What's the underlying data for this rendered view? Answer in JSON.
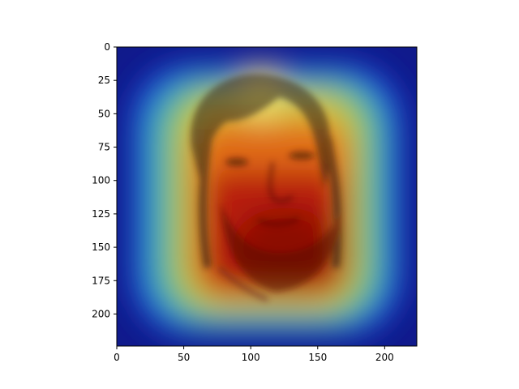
{
  "chart_data": {
    "type": "heatmap",
    "title": "",
    "xlabel": "",
    "ylabel": "",
    "xlim": [
      0,
      224
    ],
    "ylim": [
      224,
      0
    ],
    "x_ticks": [
      0,
      50,
      100,
      150,
      200
    ],
    "y_ticks": [
      0,
      25,
      50,
      75,
      100,
      125,
      150,
      175,
      200
    ],
    "colormap": "jet",
    "image_content": "face",
    "heat_peak": [
      130,
      170
    ],
    "grid": false,
    "legend": "none"
  }
}
